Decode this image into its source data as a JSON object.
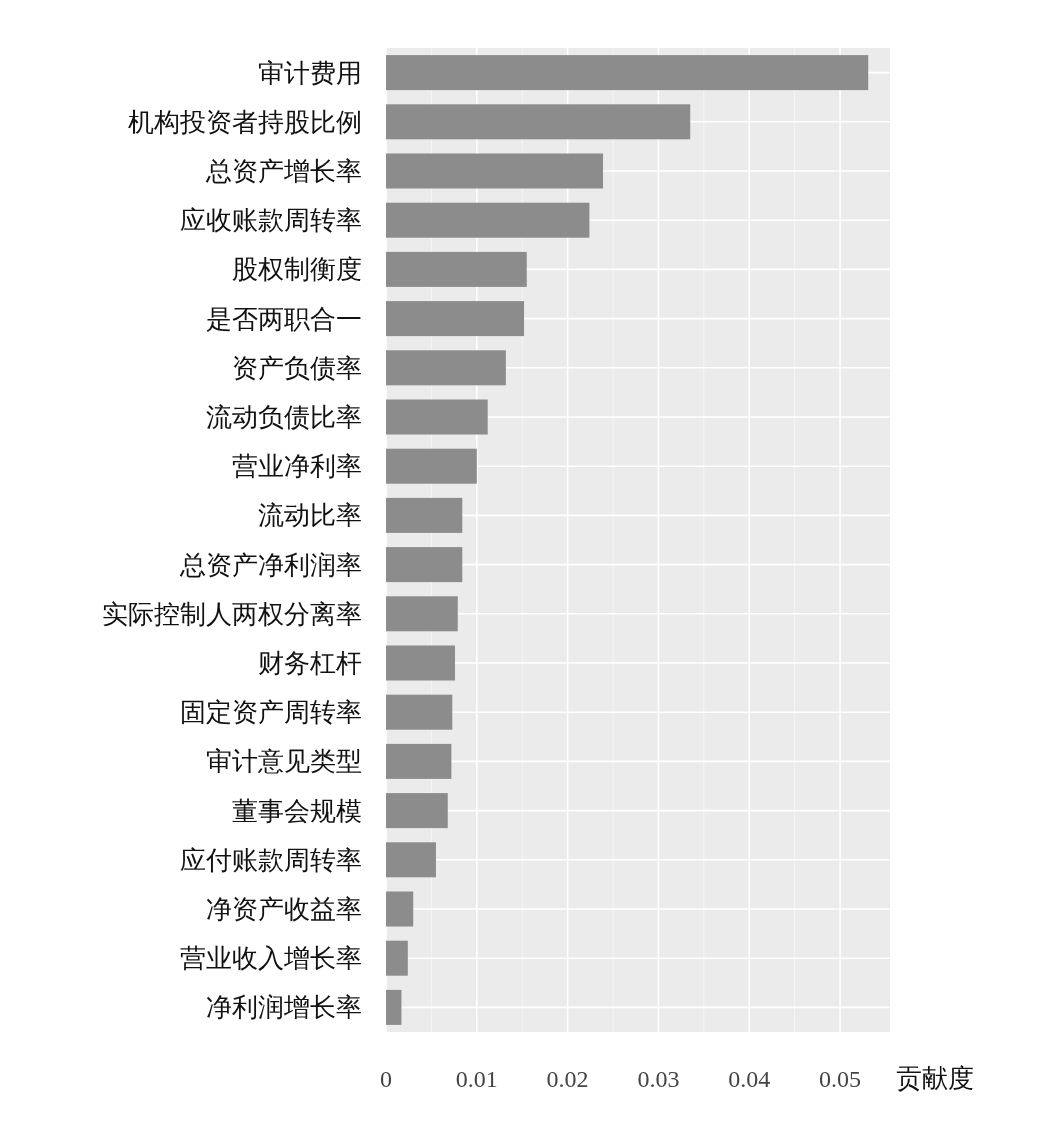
{
  "chart_data": {
    "type": "bar",
    "orientation": "horizontal",
    "xlabel": "贡献度",
    "categories": [
      "审计费用",
      "机构投资者持股比例",
      "总资产增长率",
      "应收账款周转率",
      "股权制衡度",
      "是否两职合一",
      "资产负债率",
      "流动负债比率",
      "营业净利率",
      "流动比率",
      "总资产净利润率",
      "实际控制人两权分离率",
      "财务杠杆",
      "固定资产周转率",
      "审计意见类型",
      "董事会规模",
      "应付账款周转率",
      "净资产收益率",
      "营业收入增长率",
      "净利润增长率"
    ],
    "values": [
      0.0531,
      0.0335,
      0.0239,
      0.0224,
      0.0155,
      0.0152,
      0.0132,
      0.0112,
      0.01,
      0.0084,
      0.0084,
      0.0079,
      0.0076,
      0.0073,
      0.0072,
      0.0068,
      0.0055,
      0.003,
      0.0024,
      0.0017
    ],
    "color": "#8c8c8c",
    "xlim": [
      0,
      0.0555
    ],
    "xticks": [
      0,
      0.01,
      0.02,
      0.03,
      0.04,
      0.05
    ],
    "grid": true
  }
}
